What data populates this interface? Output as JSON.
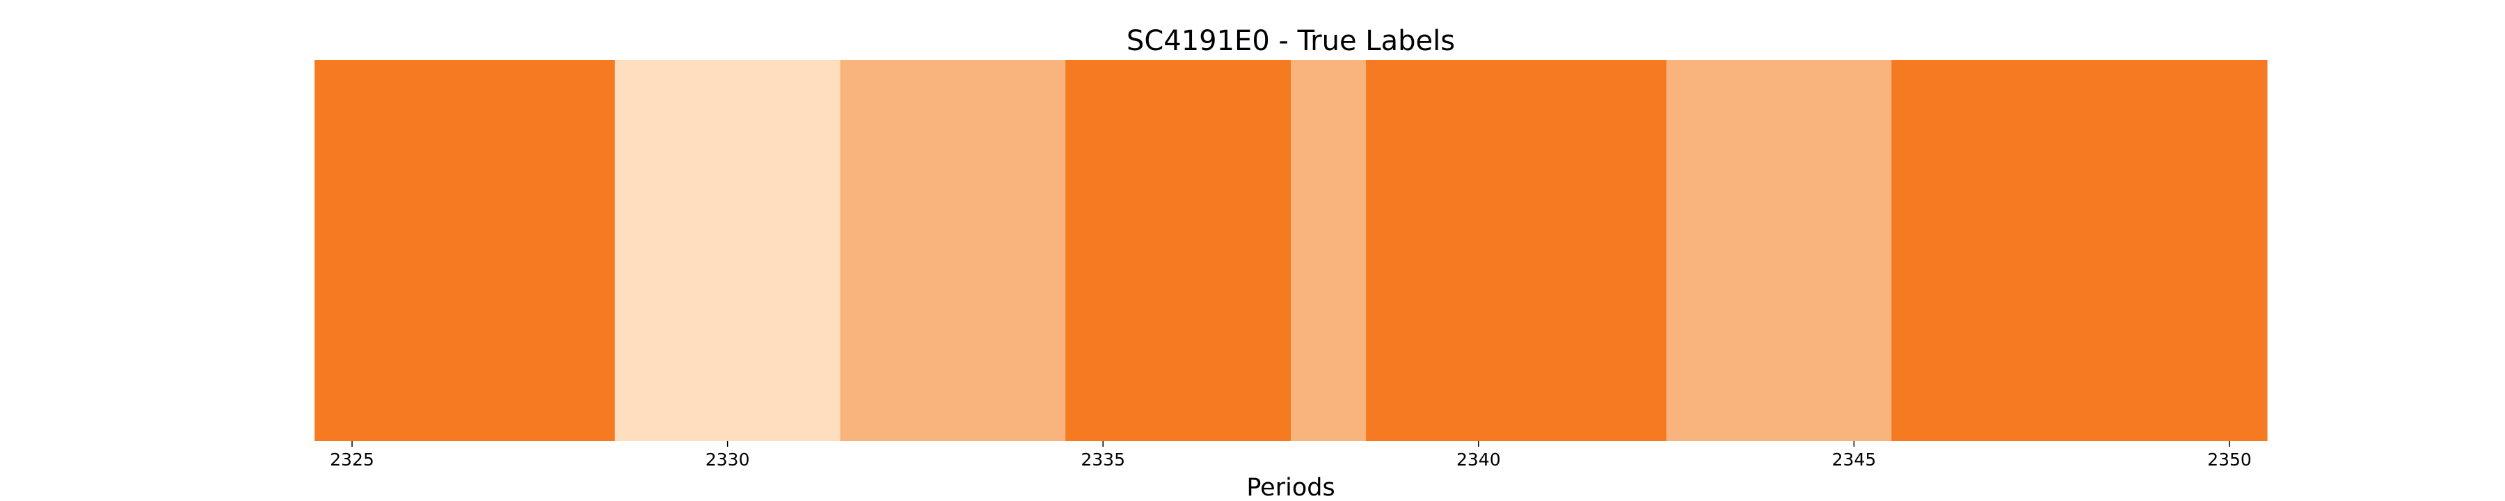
{
  "chart_data": {
    "type": "heatmap",
    "title": "SC4191E0 - True Labels",
    "xlabel": "Periods",
    "ylabel": "",
    "xlim": [
      2324.5,
      2350.5
    ],
    "xticks": [
      2325,
      2330,
      2335,
      2340,
      2345,
      2350
    ],
    "xtick_labels": [
      "2325",
      "2330",
      "2335",
      "2340",
      "2345",
      "2350"
    ],
    "grid": false,
    "legend": "none",
    "series": [
      {
        "segments": [
          {
            "start": 2324.5,
            "end": 2328.5,
            "level": 2,
            "color": "#f57a22"
          },
          {
            "start": 2328.5,
            "end": 2331.5,
            "level": 0,
            "color": "#fedebf"
          },
          {
            "start": 2331.5,
            "end": 2334.5,
            "level": 1,
            "color": "#f9b37c"
          },
          {
            "start": 2334.5,
            "end": 2337.5,
            "level": 2,
            "color": "#f57a22"
          },
          {
            "start": 2337.5,
            "end": 2338.5,
            "level": 1,
            "color": "#f9b37c"
          },
          {
            "start": 2338.5,
            "end": 2342.5,
            "level": 2,
            "color": "#f57a22"
          },
          {
            "start": 2342.5,
            "end": 2345.5,
            "level": 1,
            "color": "#f9b37c"
          },
          {
            "start": 2345.5,
            "end": 2350.5,
            "level": 2,
            "color": "#f57a22"
          }
        ]
      }
    ]
  }
}
